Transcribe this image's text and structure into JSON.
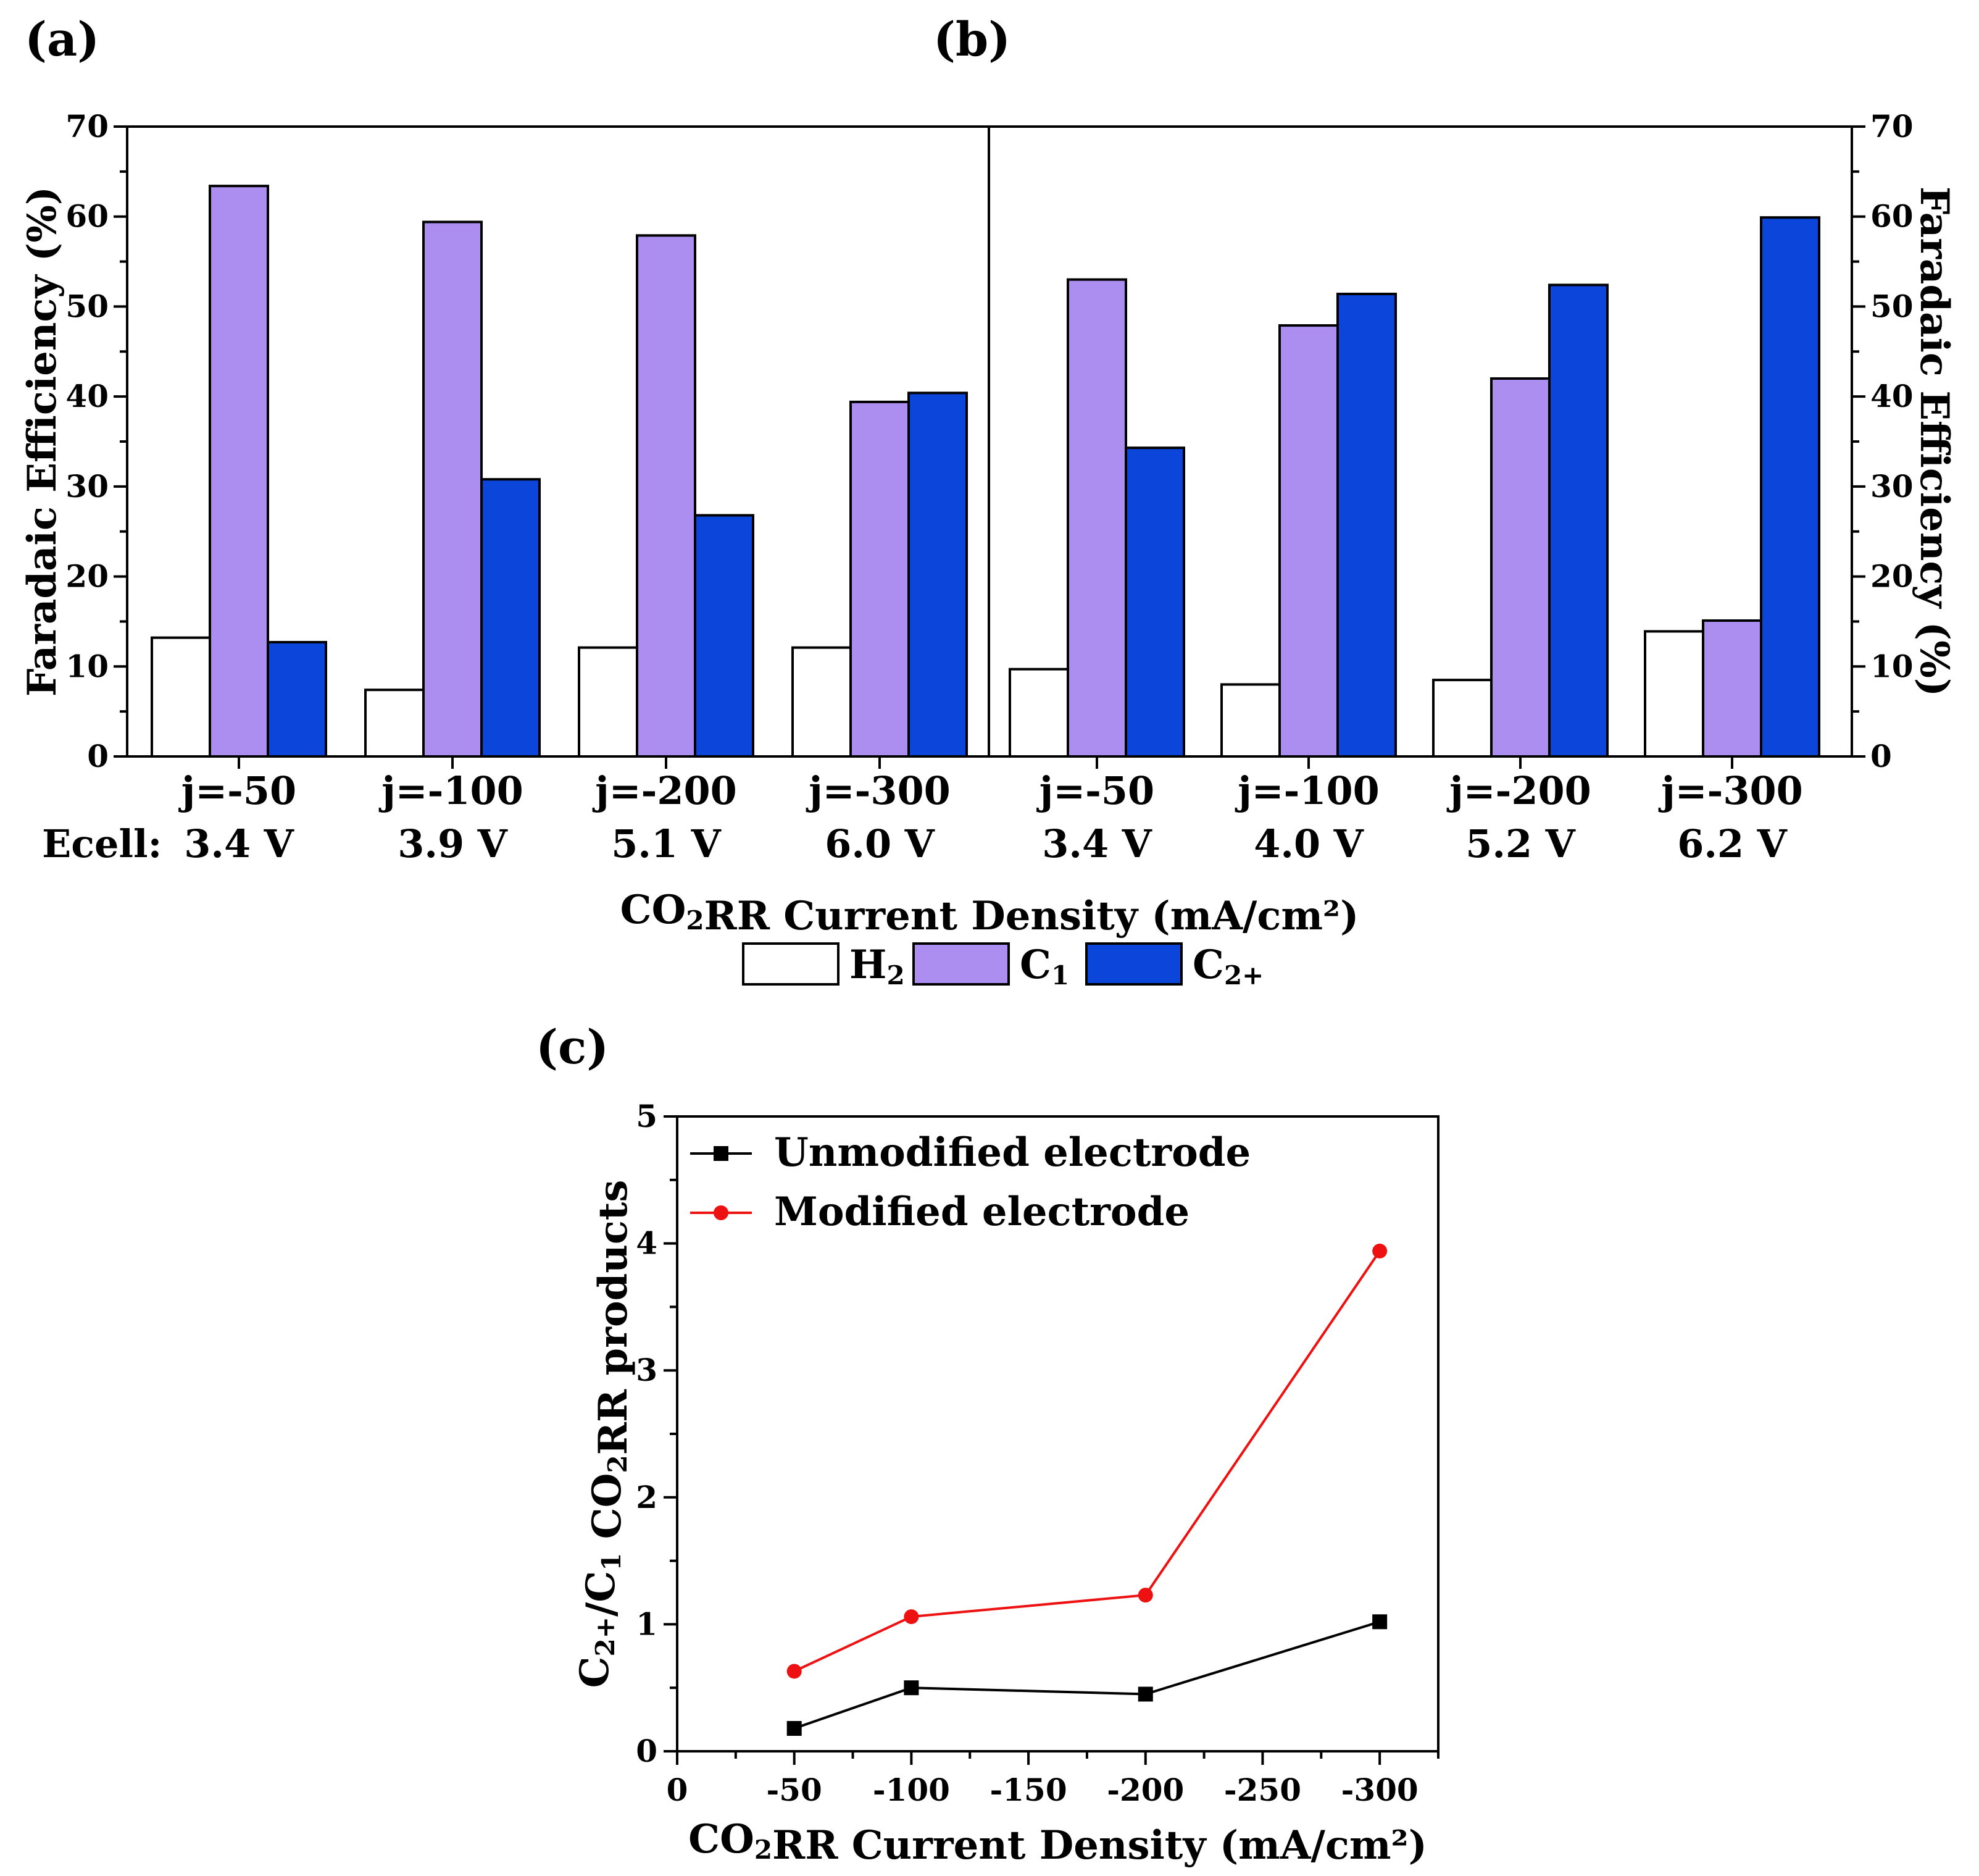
{
  "figure": {
    "panel_labels": [
      "(a)",
      "(b)",
      "(c)"
    ],
    "top_xlabel": {
      "prefix": "CO",
      "sub": "2",
      "suffix": "RR Current Density (mA/cm²)"
    },
    "ecell_label": "Ecell:",
    "legend": [
      {
        "main": "H",
        "sub": "2",
        "color": "#ffffff"
      },
      {
        "main": "C",
        "sub": "1",
        "color": "#ab8ef0"
      },
      {
        "main": "C",
        "sub": "2+",
        "color": "#0c45d9"
      }
    ]
  },
  "chart_data": [
    {
      "id": "a",
      "type": "bar",
      "ylabel": "Faradaic Efficiency (%)",
      "ylim": [
        0,
        70
      ],
      "yticks": [
        "0",
        "10",
        "20",
        "30",
        "40",
        "50",
        "60",
        "70"
      ],
      "categories": [
        "j=-50",
        "j=-100",
        "j=-200",
        "j=-300"
      ],
      "ecell": [
        "3.4 V",
        "3.9 V",
        "5.1 V",
        "6.0 V"
      ],
      "series": [
        {
          "name": "H2",
          "values": [
            13.2,
            7.4,
            12.1,
            12.1
          ]
        },
        {
          "name": "C1",
          "values": [
            63.4,
            59.4,
            57.9,
            39.4
          ]
        },
        {
          "name": "C2+",
          "values": [
            12.7,
            30.8,
            26.8,
            40.4
          ]
        }
      ]
    },
    {
      "id": "b",
      "type": "bar",
      "ylabel": "Faradaic Efficiency (%)",
      "ylim": [
        0,
        70
      ],
      "yticks": [
        "0",
        "10",
        "20",
        "30",
        "40",
        "50",
        "60",
        "70"
      ],
      "categories": [
        "j=-50",
        "j=-100",
        "j=-200",
        "j=-300"
      ],
      "ecell": [
        "3.4 V",
        "4.0 V",
        "5.2 V",
        "6.2 V"
      ],
      "series": [
        {
          "name": "H2",
          "values": [
            9.7,
            8.0,
            8.5,
            13.9
          ]
        },
        {
          "name": "C1",
          "values": [
            53.0,
            47.9,
            42.0,
            15.1
          ]
        },
        {
          "name": "C2+",
          "values": [
            34.3,
            51.4,
            52.4,
            59.9
          ]
        }
      ]
    },
    {
      "id": "c",
      "type": "line",
      "xlabel": {
        "prefix": "CO",
        "sub": "2",
        "suffix": "RR Current Density (mA/cm²)"
      },
      "ylabel": {
        "parts": [
          [
            "C",
            "2+"
          ],
          [
            "/C",
            "1"
          ],
          [
            " CO",
            "2"
          ],
          [
            "RR products",
            ""
          ]
        ]
      },
      "xlim": [
        0,
        -325
      ],
      "ylim": [
        0,
        5
      ],
      "xticks": [
        "0",
        "-50",
        "-100",
        "-150",
        "-200",
        "-250",
        "-300"
      ],
      "yticks": [
        "0",
        "1",
        "2",
        "3",
        "4",
        "5"
      ],
      "legend_position": "top-left",
      "series": [
        {
          "name": "Unmodified electrode",
          "color": "#000000",
          "marker": "square",
          "x": [
            -50,
            -100,
            -200,
            -300
          ],
          "y": [
            0.18,
            0.5,
            0.45,
            1.02
          ]
        },
        {
          "name": "Modified electrode",
          "color": "#ee1111",
          "marker": "circle",
          "x": [
            -50,
            -100,
            -200,
            -300
          ],
          "y": [
            0.63,
            1.06,
            1.23,
            3.94
          ]
        }
      ]
    }
  ]
}
